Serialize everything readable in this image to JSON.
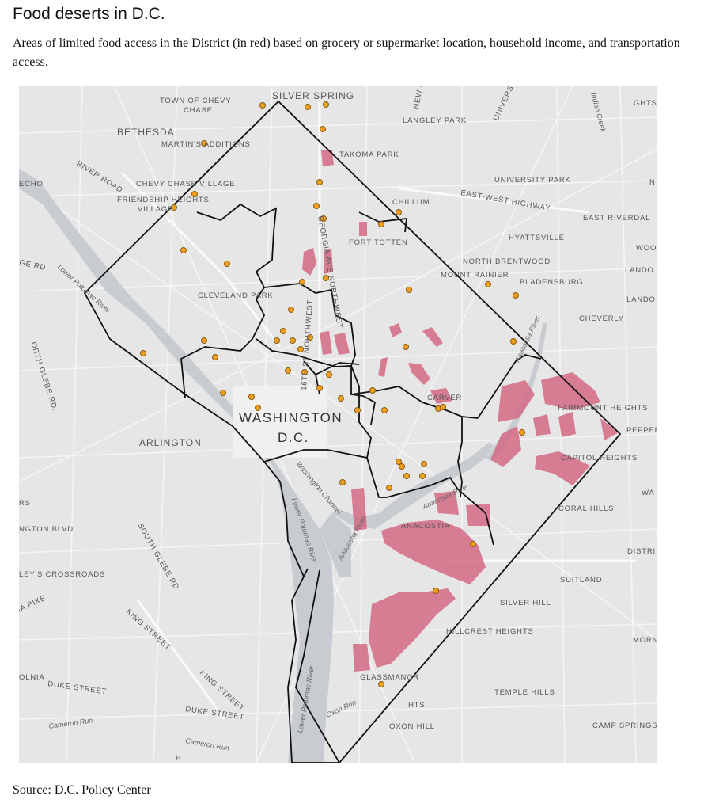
{
  "header": {
    "title": "Food deserts in D.C.",
    "subtitle": "Areas of limited food access in the District (in red) based on grocery or supermarket location, household income, and transportation access."
  },
  "footer": {
    "source": "Source: D.C. Policy Center"
  },
  "colors": {
    "food_desert": "#d46a85",
    "store_dot": "#f0a020",
    "boundary": "#111111",
    "river": "#c9cdd2",
    "land": "#e8e8e8"
  },
  "map": {
    "labels": {
      "silver_spring": "SILVER SPRING",
      "town_of_chevy_chase_1": "TOWN OF CHEVY",
      "town_of_chevy_chase_2": "CHASE",
      "bethesda": "BETHESDA",
      "martins_additions": "MARTIN'S ADDITIONS",
      "river_road": "RIVER ROAD",
      "echo": "ECHO",
      "chevy_chase_village": "CHEVY CHASE VILLAGE",
      "friendship_heights_1": "FRIENDSHIP HEIGHTS",
      "friendship_heights_2": "VILLAGE",
      "takoma_park": "TAKOMA PARK",
      "langley_park": "LANGLEY PARK",
      "new_h": "NEW H",
      "univers": "UNIVERS",
      "indian_creek": "Indian Creek",
      "ghts": "GHTS",
      "chillum": "CHILLUM",
      "university_park": "UNIVERSITY PARK",
      "east_west_highway": "EAST-WEST HIGHWAY",
      "east_riverdale": "EAST RIVERDAL",
      "hyattsville": "HYATTSVILLE",
      "fort_totten": "FORT TOTTEN",
      "georgia_ave": "GEORGIA AVE NORTHWEST",
      "north_brentwood": "NORTH BRENTWOOD",
      "mount_rainier": "MOUNT RAINIER",
      "bladensburg": "BLADENSBURG",
      "woo": "WOO",
      "lando1": "LANDO",
      "lando2": "LANDO",
      "ge_rd": "GE RD",
      "lower_potomac_river_nw": "Lower Potomac River",
      "cleveland_park": "CLEVELAND PARK",
      "sixteenth_st": "16TH ST NORTHWEST",
      "anacostia_river_ne": "Anacostia River",
      "cheverly": "CHEVERLY",
      "north_glebe": "ORTH GLEBE RD.",
      "carver": "CARVER",
      "fairmount_heights": "FAIRMOUNT HEIGHTS",
      "pepper": "PEPPER",
      "washington": "WASHINGTON",
      "dc": "D.C.",
      "arlington": "ARLINGTON",
      "capitol_heights": "CAPITOL HEIGHTS",
      "wa": "WA",
      "rs": "RS",
      "washington_channel": "Washington Channel",
      "anacostia_river_mid": "Anacostia River",
      "anacostia_river_low": "Anacostia River",
      "lower_potomac_river_mid": "Lower Potomac River",
      "coral_hills": "CORAL HILLS",
      "arlington_blvd": "NGTON BLVD.",
      "south_glebe": "SOUTH GLEBE RD",
      "anacostia": "ANACOSTIA",
      "distri": "DISTRI",
      "baileys_crossroads": "LEY'S CROSSROADS",
      "pike": "IA PIKE",
      "suitland": "SUITLAND",
      "silver_hill": "SILVER HILL",
      "king_street_1": "KING STREET",
      "hillcrest_heights": "HILLCREST HEIGHTS",
      "morn": "MORN",
      "lower_potomac_river_s": "Lower Potomac River",
      "olnia": "OLNIA",
      "duke_street_1": "DUKE STREET",
      "king_street_2": "KING STREET",
      "duke_street_2": "DUKE STREET",
      "glassmanor": "GLASSMANOR",
      "temple_hills": "TEMPLE HILLS",
      "hts": "HTS",
      "cameron_run_1": "Cameron Run",
      "oxon_run": "Oxon Run",
      "oxon_hill": "OXON HILL",
      "camp_springs": "CAMP SPRINGS",
      "cameron_run_2": "Cameron Run",
      "h": "H",
      "n_edge": "N"
    }
  }
}
